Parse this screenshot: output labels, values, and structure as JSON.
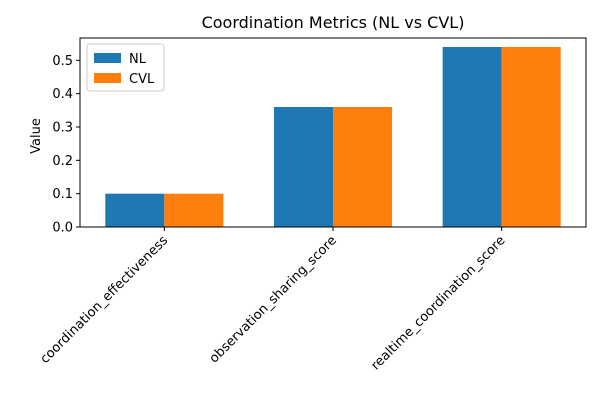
{
  "chart_data": {
    "type": "bar",
    "title": "Coordination Metrics (NL vs CVL)",
    "xlabel": "",
    "ylabel": "Value",
    "categories": [
      "coordination_effectiveness",
      "observation_sharing_score",
      "realtime_coordination_score"
    ],
    "series": [
      {
        "name": "NL",
        "color": "#1f77b4",
        "values": [
          0.1,
          0.36,
          0.54
        ]
      },
      {
        "name": "CVL",
        "color": "#ff7f0e",
        "values": [
          0.1,
          0.36,
          0.54
        ]
      }
    ],
    "ylim": [
      0,
      0.567
    ],
    "yticks": [
      0.0,
      0.1,
      0.2,
      0.3,
      0.4,
      0.5
    ],
    "ytick_labels": [
      "0.0",
      "0.1",
      "0.2",
      "0.3",
      "0.4",
      "0.5"
    ],
    "grid": false,
    "legend_position": "top-left"
  }
}
